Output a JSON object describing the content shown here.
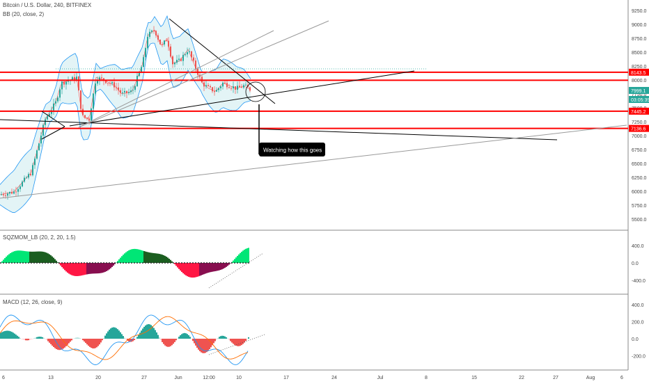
{
  "header": {
    "symbol_title": "Bitcoin / U.S. Dollar, 240, BITFINEX",
    "bb_legend": "BB (20, close, 2)",
    "sqz_legend": "SQZMOM_LB (20, 2, 20, 1.5)",
    "macd_legend": "MACD (12, 26, close, 9)"
  },
  "annotation": {
    "text": "Watching how this goes"
  },
  "colors": {
    "up_candle": "#26a69a",
    "down_candle": "#ef5350",
    "support_line": "#ff0000",
    "bb_band": "#2196f3",
    "bb_fill": "#e3f4f6",
    "macd_line": "#2196f3",
    "signal_line": "#ff6d00",
    "squeeze_up_strong": "#00e676",
    "squeeze_up_weak": "#1b5e20",
    "squeeze_dn_strong": "#ff1744",
    "squeeze_dn_weak": "#880e4f"
  },
  "chart_data": [
    {
      "type": "candlestick",
      "title": "Bitcoin / U.S. Dollar, 240, BITFINEX",
      "ylim": [
        5350,
        9350
      ],
      "y_ticks": [
        "9250.0",
        "9000.0",
        "8750.0",
        "8500.0",
        "8250.0",
        "8000.0",
        "7750.0",
        "7500.0",
        "7250.0",
        "7000.0",
        "6750.0",
        "6500.0",
        "6250.0",
        "6000.0",
        "5750.0",
        "5500.0"
      ],
      "x_ticks": [
        "6",
        "13",
        "20",
        "27",
        "Jun",
        "12:00",
        "10",
        "17",
        "24",
        "Jul",
        "8",
        "15",
        "22",
        "27",
        "Aug",
        "6"
      ],
      "horizontal_levels": [
        {
          "label": "8143.5",
          "value": 8143.5
        },
        {
          "label": "7999.1",
          "value": 7999.1
        },
        {
          "label": "7445.2",
          "value": 7445.2
        },
        {
          "label": "7136.6",
          "value": 7136.6
        }
      ],
      "price_tags": [
        "8143.5",
        "7999.1",
        "03:05:39",
        "7445.2",
        "7136.6"
      ],
      "indicator": "BB (20, close, 2)",
      "grid": false
    },
    {
      "type": "histogram",
      "title": "SQZMOM_LB (20, 2, 20, 1.5)",
      "y_ticks": [
        "400.0",
        "0.0",
        "-400.0"
      ],
      "ylim": [
        -650,
        650
      ]
    },
    {
      "type": "line",
      "title": "MACD (12, 26, close, 9)",
      "y_ticks": [
        "400.0",
        "200.0",
        "0.0",
        "-200.0"
      ],
      "ylim": [
        -300,
        450
      ]
    }
  ]
}
